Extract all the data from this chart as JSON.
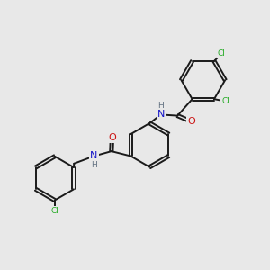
{
  "background_color": "#e8e8e8",
  "bond_color": "#1a1a1a",
  "atom_colors": {
    "N": "#1414c8",
    "O": "#cc1414",
    "Cl": "#22aa22",
    "H": "#607080"
  },
  "font_size_cl": 6.5,
  "font_size_o": 8.0,
  "font_size_n": 8.0,
  "font_size_h": 6.5,
  "line_width": 1.4,
  "dbo": 0.055,
  "figsize": [
    3.0,
    3.0
  ],
  "dpi": 100
}
